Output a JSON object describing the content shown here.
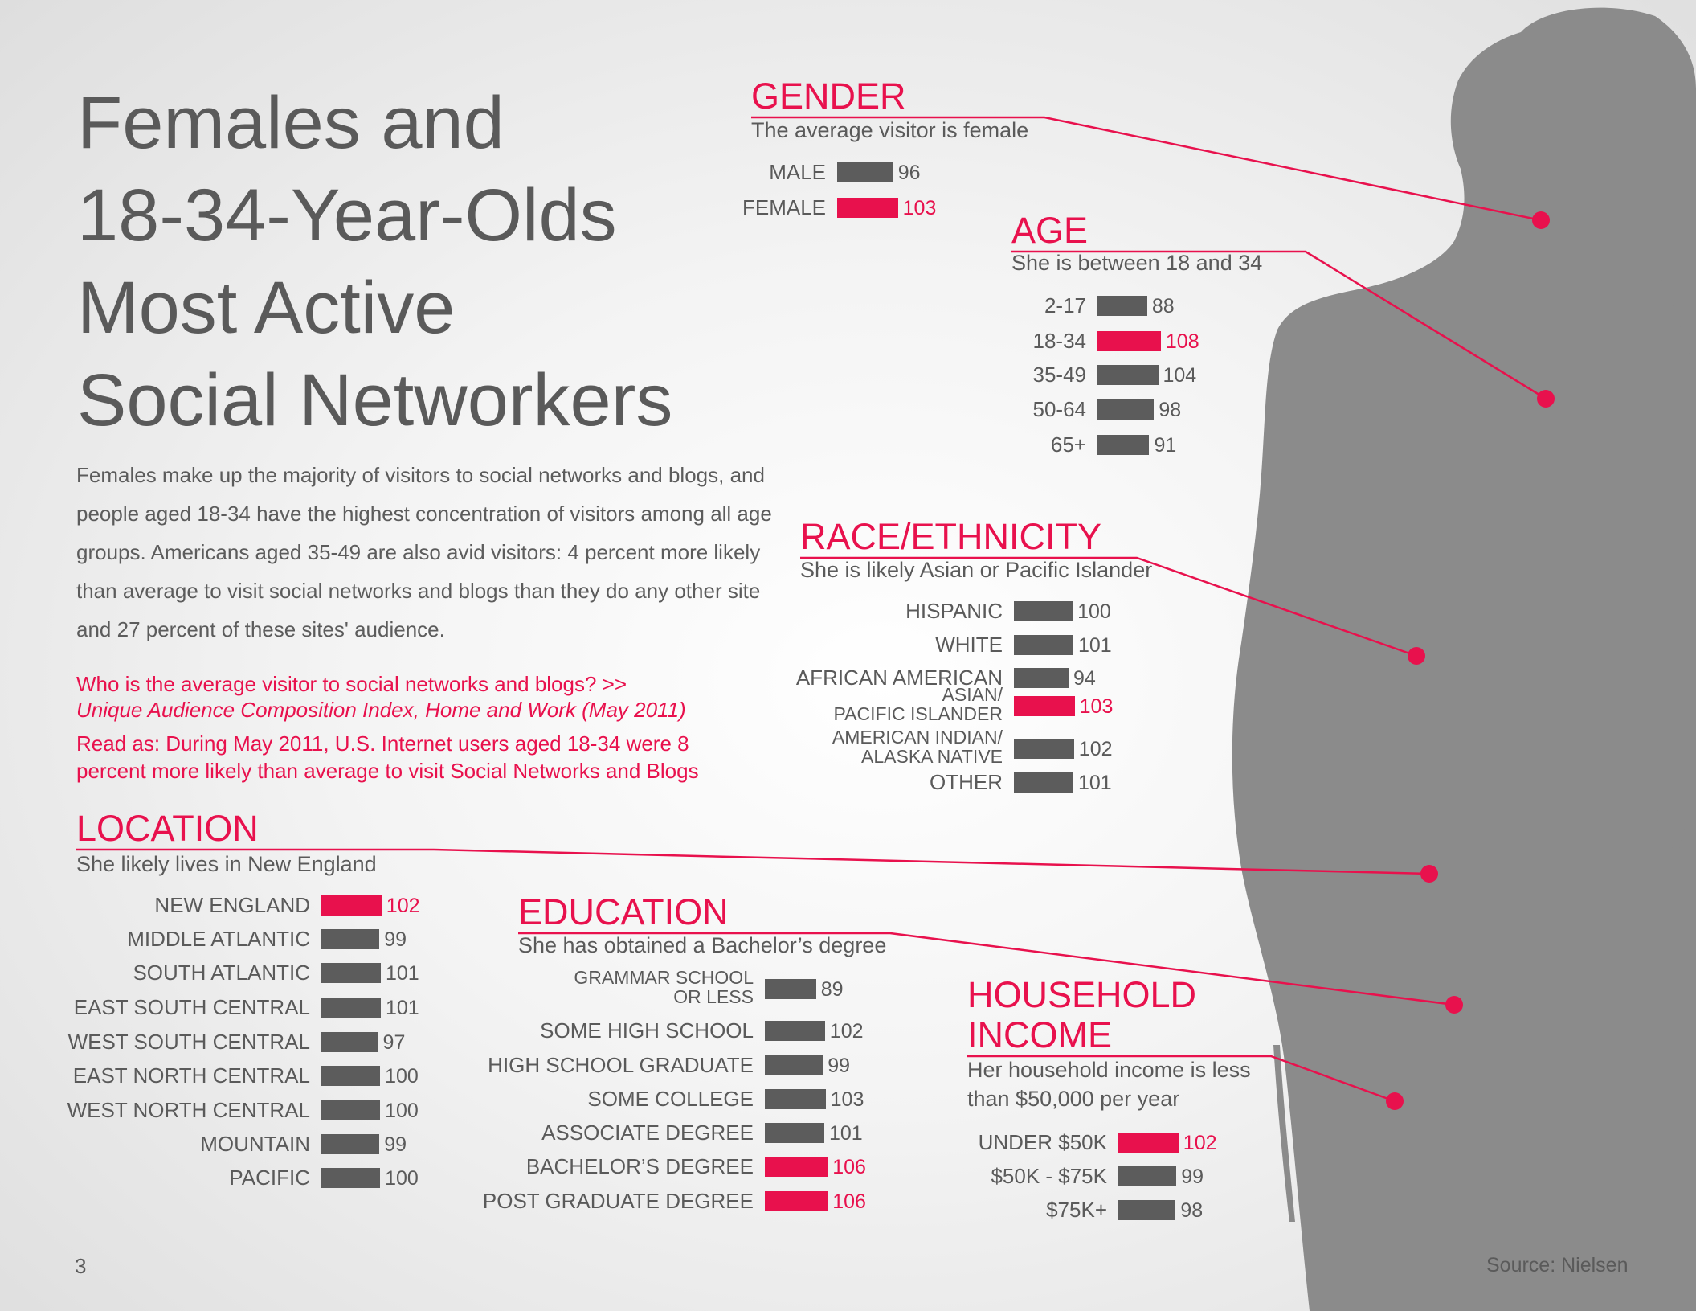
{
  "page": {
    "title_lines": [
      "Females and",
      "18-34-Year-Olds",
      "Most Active",
      "Social Networkers"
    ],
    "intro": "Females make up the majority of visitors to social networks and blogs, and people aged 18-34 have the highest concentration of visitors among all age groups. Americans aged 35-49 are also avid visitors: 4 percent more likely than average to visit social networks and blogs than they do any other site and 27 percent of these sites' audience.",
    "question": "Who is the average visitor to social networks and blogs? >>",
    "index_name": "Unique Audience Composition Index, Home and Work (May 2011)",
    "read_as": "Read as: During May 2011, U.S. Internet users aged 18-34 were 8 percent more likely than average to visit Social Networks and Blogs",
    "page_number": "3",
    "source": "Source: Nielsen"
  },
  "colors": {
    "accent": "#e8114d",
    "bar": "#5c5c5c",
    "text": "#5a5a5a",
    "silhouette": "#8b8b8b"
  },
  "chart_data": [
    {
      "type": "bar",
      "title": "GENDER",
      "subtitle": "The average visitor is female",
      "categories": [
        "MALE",
        "FEMALE"
      ],
      "values": [
        96,
        103
      ],
      "highlight": [
        "FEMALE"
      ]
    },
    {
      "type": "bar",
      "title": "AGE",
      "subtitle": "She is between 18 and 34",
      "categories": [
        "2-17",
        "18-34",
        "35-49",
        "50-64",
        "65+"
      ],
      "values": [
        88,
        108,
        104,
        98,
        91
      ],
      "highlight": [
        "18-34"
      ]
    },
    {
      "type": "bar",
      "title": "RACE/ETHNICITY",
      "subtitle": "She is likely Asian or Pacific Islander",
      "categories": [
        "HISPANIC",
        "WHITE",
        "AFRICAN AMERICAN",
        "ASIAN/\nPACIFIC ISLANDER",
        "AMERICAN INDIAN/\nALASKA NATIVE",
        "OTHER"
      ],
      "values": [
        100,
        101,
        94,
        103,
        102,
        101
      ],
      "highlight": [
        "ASIAN/\nPACIFIC ISLANDER"
      ]
    },
    {
      "type": "bar",
      "title": "LOCATION",
      "subtitle": "She likely lives in New England",
      "categories": [
        "NEW ENGLAND",
        "MIDDLE ATLANTIC",
        "SOUTH ATLANTIC",
        "EAST SOUTH CENTRAL",
        "WEST SOUTH CENTRAL",
        "EAST NORTH CENTRAL",
        "WEST NORTH CENTRAL",
        "MOUNTAIN",
        "PACIFIC"
      ],
      "values": [
        102,
        99,
        101,
        101,
        97,
        100,
        100,
        99,
        100
      ],
      "highlight": [
        "NEW ENGLAND"
      ]
    },
    {
      "type": "bar",
      "title": "EDUCATION",
      "subtitle": "She has obtained a Bachelor’s degree",
      "categories": [
        "GRAMMAR SCHOOL\nOR LESS",
        "SOME HIGH SCHOOL",
        "HIGH SCHOOL GRADUATE",
        "SOME COLLEGE",
        "ASSOCIATE DEGREE",
        "BACHELOR’S DEGREE",
        "POST GRADUATE DEGREE"
      ],
      "values": [
        89,
        102,
        99,
        103,
        101,
        106,
        106
      ],
      "highlight": [
        "BACHELOR’S DEGREE",
        "POST GRADUATE DEGREE"
      ]
    },
    {
      "type": "bar",
      "title": "HOUSEHOLD\nINCOME",
      "subtitle": "Her household income is less than $50,000 per year",
      "categories": [
        "UNDER $50K",
        "$50K - $75K",
        "$75K+"
      ],
      "values": [
        102,
        99,
        98
      ],
      "highlight": [
        "UNDER $50K"
      ]
    }
  ]
}
